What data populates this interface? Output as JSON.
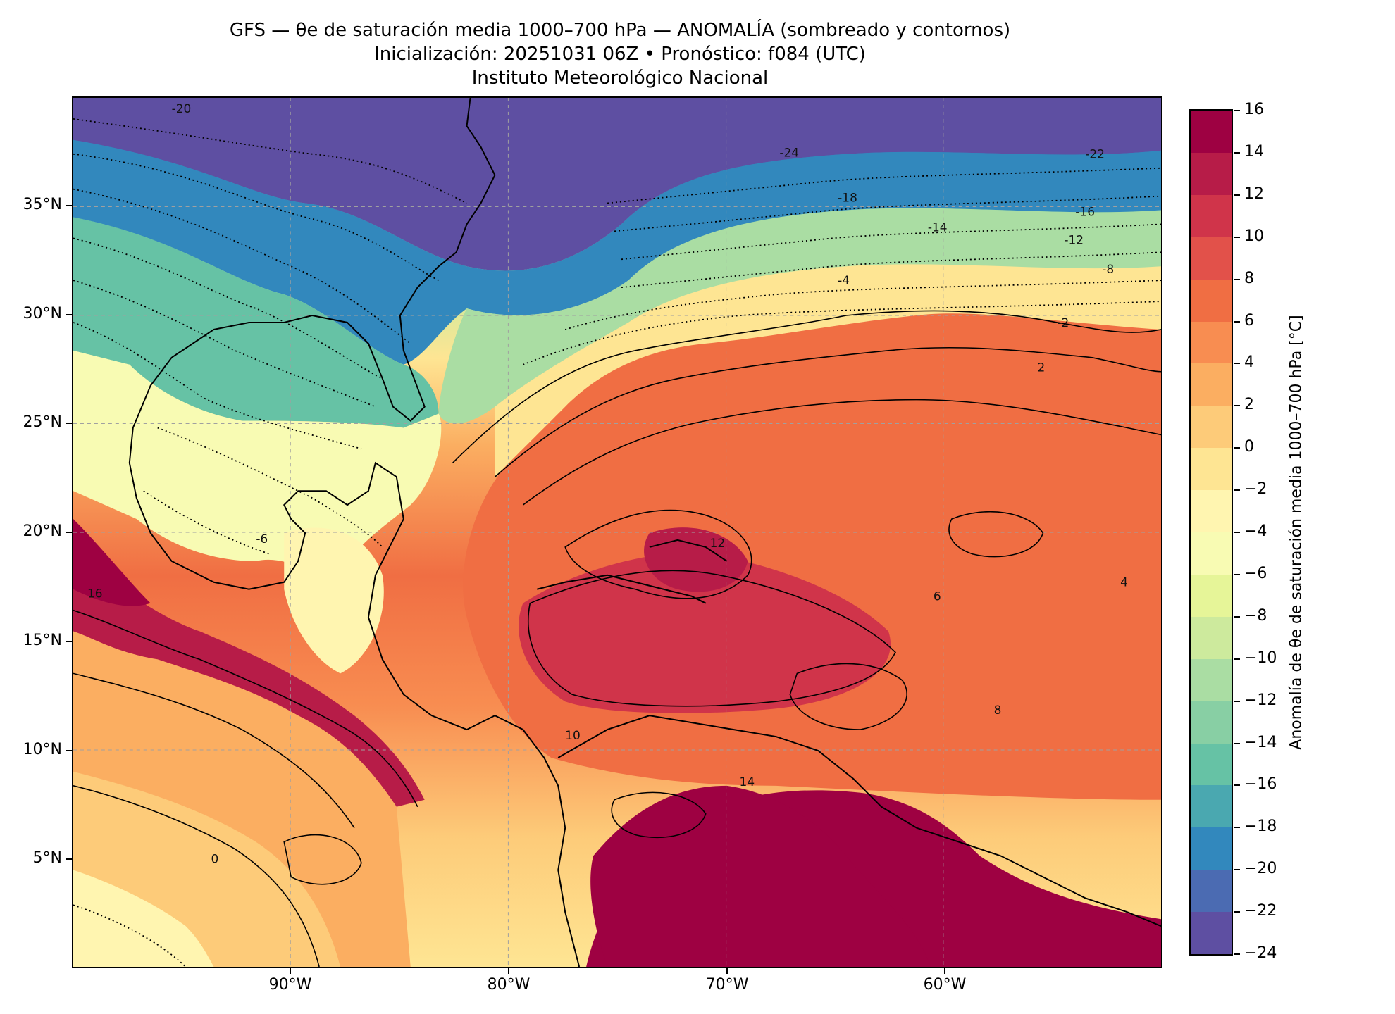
{
  "title": {
    "line1": "GFS — θe de saturación media 1000–700 hPa — ANOMALÍA (sombreado y contornos)",
    "line2": "Inicialización: 20251031 06Z   •   Pronóstico: f084 (UTC)",
    "line3": "Instituto Meteorológico Nacional"
  },
  "map": {
    "lon_range": [
      -100,
      -50
    ],
    "lat_range": [
      0,
      40
    ],
    "lat_ticks": [
      "35°N",
      "30°N",
      "25°N",
      "20°N",
      "15°N",
      "10°N",
      "5°N"
    ],
    "lon_ticks": [
      "90°W",
      "80°W",
      "70°W",
      "60°W"
    ],
    "grid": true,
    "contour_labels": [
      "-20",
      "-24",
      "-22",
      "-18",
      "-16",
      "-14",
      "-12",
      "-8",
      "-4",
      "-2",
      "2",
      "4",
      "6",
      "8",
      "10",
      "12",
      "14",
      "16",
      "-6",
      "0"
    ]
  },
  "colorbar": {
    "label": "Anomalía de θe de saturación media 1000–700 hPa [°C]",
    "tick_labels": [
      "16",
      "14",
      "12",
      "10",
      "8",
      "6",
      "4",
      "2",
      "0",
      "−2",
      "−4",
      "−6",
      "−8",
      "−10",
      "−12",
      "−14",
      "−16",
      "−18",
      "−20",
      "−22",
      "−24"
    ],
    "colors": [
      "#9e0142",
      "#b71c48",
      "#d0344a",
      "#e2514a",
      "#f06e43",
      "#f88d51",
      "#fbae61",
      "#fdcb79",
      "#fee593",
      "#fff5b0",
      "#f8fbb3",
      "#e6f598",
      "#cdea9d",
      "#aadda3",
      "#88cfa4",
      "#66c2a5",
      "#4aa8b0",
      "#3288bd",
      "#4b6bb2",
      "#5e4fa2"
    ]
  }
}
